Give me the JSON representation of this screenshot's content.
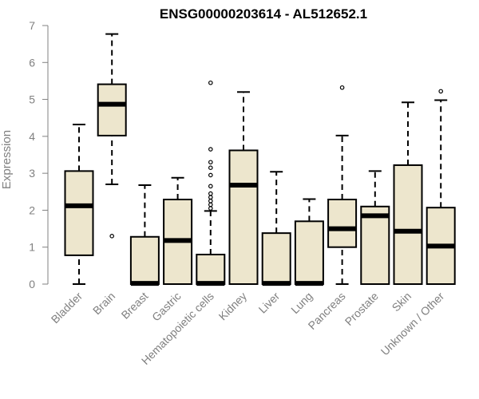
{
  "chart_data": {
    "type": "boxplot",
    "title": "ENSG00000203614 - AL512652.1",
    "xlabel": "",
    "ylabel": "Expression",
    "ylim": [
      0,
      7
    ],
    "yticks": [
      0,
      1,
      2,
      3,
      4,
      5,
      6,
      7
    ],
    "grid": false,
    "legend": "none",
    "colors": {
      "box_fill": "#ede6cd",
      "box_stroke": "#000000",
      "axis": "#808080"
    },
    "categories": [
      "Bladder",
      "Brain",
      "Breast",
      "Gastric",
      "Hematopoietic cells",
      "Kidney",
      "Liver",
      "Lung",
      "Pancreas",
      "Prostate",
      "Skin",
      "Unknown / Other"
    ],
    "boxes": [
      {
        "min": 0,
        "q1": 0.78,
        "median": 2.12,
        "q3": 3.06,
        "max": 4.32,
        "outliers": []
      },
      {
        "min": 2.7,
        "q1": 4.02,
        "median": 4.87,
        "q3": 5.41,
        "max": 6.77,
        "outliers": [
          1.3
        ]
      },
      {
        "min": 0,
        "q1": 0,
        "median": 0.02,
        "q3": 1.28,
        "max": 2.68,
        "outliers": []
      },
      {
        "min": 0,
        "q1": 0,
        "median": 1.18,
        "q3": 2.29,
        "max": 2.88,
        "outliers": []
      },
      {
        "min": 0,
        "q1": 0,
        "median": 0.02,
        "q3": 0.8,
        "max": 1.98,
        "outliers": [
          2.05,
          2.15,
          2.25,
          2.35,
          2.45,
          2.65,
          2.95,
          3.15,
          3.3,
          3.65,
          5.45
        ]
      },
      {
        "min": 0,
        "q1": 0,
        "median": 2.68,
        "q3": 3.62,
        "max": 5.2,
        "outliers": []
      },
      {
        "min": 0,
        "q1": 0,
        "median": 0.02,
        "q3": 1.38,
        "max": 3.04,
        "outliers": []
      },
      {
        "min": 0,
        "q1": 0,
        "median": 0.02,
        "q3": 1.7,
        "max": 2.3,
        "outliers": []
      },
      {
        "min": 0,
        "q1": 1.0,
        "median": 1.5,
        "q3": 2.29,
        "max": 4.02,
        "outliers": [
          5.32
        ]
      },
      {
        "min": 0,
        "q1": 0,
        "median": 1.85,
        "q3": 2.1,
        "max": 3.06,
        "outliers": []
      },
      {
        "min": 0,
        "q1": 0,
        "median": 1.43,
        "q3": 3.22,
        "max": 4.92,
        "outliers": []
      },
      {
        "min": 0,
        "q1": 0,
        "median": 1.03,
        "q3": 2.07,
        "max": 4.98,
        "outliers": [
          5.22
        ]
      }
    ]
  }
}
